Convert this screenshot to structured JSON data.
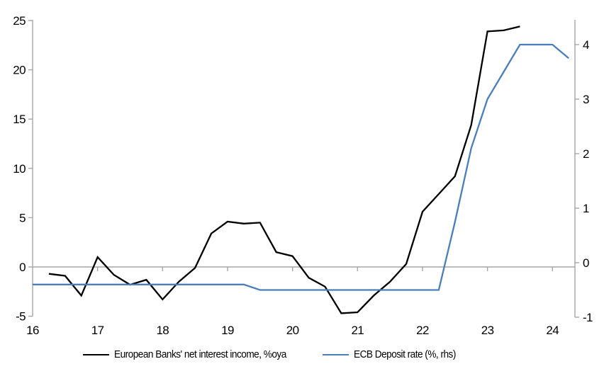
{
  "chart_data": {
    "type": "line",
    "title": "",
    "xlabel": "",
    "ylabel_left": "",
    "ylabel_right": "",
    "x_range": [
      16,
      24.35
    ],
    "x_tick_labels": [
      "16",
      "17",
      "18",
      "19",
      "20",
      "21",
      "22",
      "23",
      "24"
    ],
    "x_tick_values": [
      16,
      17,
      18,
      19,
      20,
      21,
      22,
      23,
      24
    ],
    "left_axis": {
      "min": -5,
      "max": 25,
      "ticks": [
        -5,
        0,
        5,
        10,
        15,
        20,
        25
      ]
    },
    "right_axis": {
      "min": -1,
      "max": 4.45,
      "ticks": [
        -1,
        0,
        1,
        2,
        3,
        4
      ]
    },
    "grid": "zero-line-only",
    "legend_position": "bottom",
    "series": [
      {
        "name": "European Banks' net interest income, %oya",
        "axis": "left",
        "color": "#000000",
        "points": [
          [
            16.25,
            -0.7
          ],
          [
            16.5,
            -0.9
          ],
          [
            16.75,
            -2.9
          ],
          [
            17.0,
            1.0
          ],
          [
            17.25,
            -0.8
          ],
          [
            17.5,
            -1.8
          ],
          [
            17.75,
            -1.3
          ],
          [
            18.0,
            -3.3
          ],
          [
            18.25,
            -1.5
          ],
          [
            18.5,
            -0.1
          ],
          [
            18.75,
            3.4
          ],
          [
            19.0,
            4.6
          ],
          [
            19.25,
            4.4
          ],
          [
            19.5,
            4.5
          ],
          [
            19.75,
            1.5
          ],
          [
            20.0,
            1.1
          ],
          [
            20.25,
            -1.1
          ],
          [
            20.5,
            -2.0
          ],
          [
            20.75,
            -4.7
          ],
          [
            21.0,
            -4.6
          ],
          [
            21.25,
            -2.9
          ],
          [
            21.5,
            -1.5
          ],
          [
            21.75,
            0.3
          ],
          [
            22.0,
            5.6
          ],
          [
            22.25,
            7.4
          ],
          [
            22.5,
            9.2
          ],
          [
            22.75,
            14.4
          ],
          [
            23.0,
            23.9
          ],
          [
            23.25,
            24.0
          ],
          [
            23.5,
            24.4
          ]
        ]
      },
      {
        "name": "ECB Deposit rate (%, rhs)",
        "axis": "right",
        "color": "#4a7ebb",
        "points": [
          [
            16.0,
            -0.4
          ],
          [
            19.25,
            -0.4
          ],
          [
            19.5,
            -0.5
          ],
          [
            22.25,
            -0.5
          ],
          [
            22.5,
            0.75
          ],
          [
            22.75,
            2.1
          ],
          [
            23.0,
            3.0
          ],
          [
            23.25,
            3.5
          ],
          [
            23.5,
            4.0
          ],
          [
            24.0,
            4.0
          ],
          [
            24.25,
            3.75
          ]
        ]
      }
    ]
  },
  "legend": {
    "items": [
      {
        "label": "European Banks' net interest income, %oya",
        "color": "#000000"
      },
      {
        "label": "ECB Deposit rate (%, rhs)",
        "color": "#4a7ebb"
      }
    ]
  },
  "colors": {
    "background": "#ffffff",
    "axis": "#a6a6a6",
    "text": "#000000",
    "series_nii": "#000000",
    "series_ecb": "#4a7ebb"
  }
}
